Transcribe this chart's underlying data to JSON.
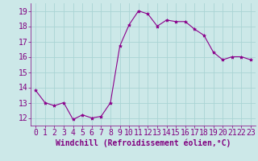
{
  "x": [
    0,
    1,
    2,
    3,
    4,
    5,
    6,
    7,
    8,
    9,
    10,
    11,
    12,
    13,
    14,
    15,
    16,
    17,
    18,
    19,
    20,
    21,
    22,
    23
  ],
  "y": [
    13.8,
    13.0,
    12.8,
    13.0,
    11.9,
    12.2,
    12.0,
    12.1,
    13.0,
    16.7,
    18.1,
    19.0,
    18.8,
    18.0,
    18.4,
    18.3,
    18.3,
    17.8,
    17.4,
    16.3,
    15.8,
    16.0,
    16.0,
    15.8
  ],
  "line_color": "#8b008b",
  "marker": "*",
  "marker_size": 3,
  "bg_color": "#cce8e8",
  "grid_color": "#aad4d4",
  "xlabel": "Windchill (Refroidissement éolien,°C)",
  "xlim": [
    -0.5,
    23.5
  ],
  "ylim": [
    11.5,
    19.5
  ],
  "yticks": [
    12,
    13,
    14,
    15,
    16,
    17,
    18,
    19
  ],
  "xticks": [
    0,
    1,
    2,
    3,
    4,
    5,
    6,
    7,
    8,
    9,
    10,
    11,
    12,
    13,
    14,
    15,
    16,
    17,
    18,
    19,
    20,
    21,
    22,
    23
  ],
  "xlabel_fontsize": 7,
  "tick_fontsize": 7,
  "label_color": "#800080"
}
